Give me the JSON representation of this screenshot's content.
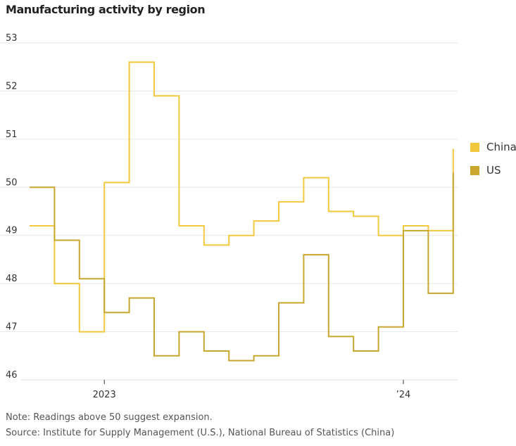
{
  "title": "Manufacturing activity by region",
  "chart_data": {
    "type": "line",
    "style": "step",
    "title": "Manufacturing activity by region",
    "x": [
      "2022-10",
      "2022-11",
      "2022-12",
      "2023-01",
      "2023-02",
      "2023-03",
      "2023-04",
      "2023-05",
      "2023-06",
      "2023-07",
      "2023-08",
      "2023-09",
      "2023-10",
      "2023-11",
      "2023-12",
      "2024-01",
      "2024-02",
      "2024-03"
    ],
    "x_tick_labels": [
      {
        "label": "2023",
        "at": "2023-01"
      },
      {
        "label": "’24",
        "at": "2024-01"
      }
    ],
    "y_ticks": [
      46,
      47,
      48,
      49,
      50,
      51,
      52,
      53
    ],
    "ylim": [
      46,
      53
    ],
    "grid": true,
    "legend_position": "right",
    "series": [
      {
        "name": "China",
        "color": "#f2c83e",
        "values": [
          49.2,
          48.0,
          47.0,
          50.1,
          52.6,
          51.9,
          49.2,
          48.8,
          49.0,
          49.3,
          49.7,
          50.2,
          49.5,
          49.4,
          49.0,
          49.2,
          49.1,
          50.8
        ]
      },
      {
        "name": "US",
        "color": "#c9a62e",
        "values": [
          50.0,
          48.9,
          48.1,
          47.4,
          47.7,
          46.5,
          47.0,
          46.6,
          46.4,
          46.5,
          47.6,
          48.6,
          46.9,
          46.6,
          47.1,
          49.1,
          47.8,
          50.3
        ]
      }
    ]
  },
  "notes": {
    "note": "Note: Readings above 50 suggest expansion.",
    "source": "Source: Institute for Supply Management (U.S.), National Bureau of Statistics (China)"
  }
}
